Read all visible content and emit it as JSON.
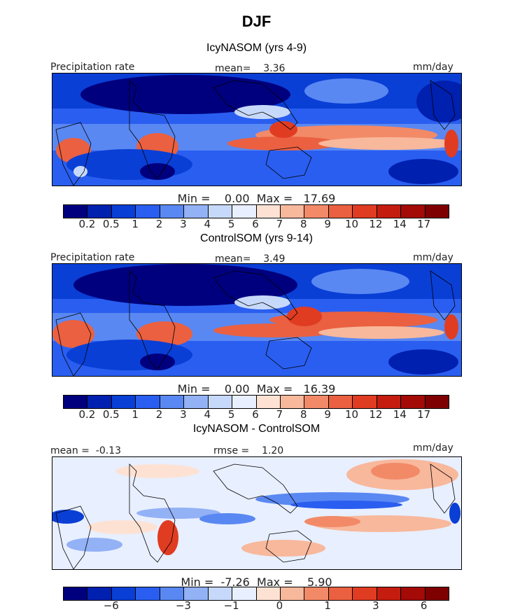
{
  "figure_title": "DJF",
  "panels": [
    {
      "title": "IcyNASOM (yrs 4-9)",
      "left_label": "Precipitation rate",
      "center_label": "mean=    3.36",
      "right_label": "mm/day",
      "stats": "Min =    0.00  Max =   17.69"
    },
    {
      "title": "ControlSOM (yrs 9-14)",
      "left_label": "Precipitation rate",
      "center_label": "mean=    3.49",
      "right_label": "mm/day",
      "stats": "Min =    0.00  Max =   16.39"
    },
    {
      "title": "IcyNASOM - ControlSOM",
      "left_label": "mean =  -0.13",
      "center_label": "rmse =    1.20",
      "right_label": "mm/day",
      "stats": "Min =  -7.26  Max =    5.90"
    }
  ],
  "colorbar": {
    "colors": [
      "#00007f",
      "#0020b0",
      "#0a3fd6",
      "#2a5ef0",
      "#5a88f2",
      "#93b1f5",
      "#c7d9fa",
      "#e8efff",
      "#fde2d4",
      "#f8b89c",
      "#f28a68",
      "#ea6040",
      "#e03c22",
      "#c41d10",
      "#a40a06",
      "#7f0000"
    ],
    "precip_ticks": [
      "0.2",
      "0.5",
      "1",
      "2",
      "3",
      "4",
      "5",
      "6",
      "7",
      "8",
      "9",
      "10",
      "12",
      "14",
      "17"
    ],
    "diff_ticks": [
      {
        "label": "−6",
        "pos": 2
      },
      {
        "label": "−3",
        "pos": 5
      },
      {
        "label": "−1",
        "pos": 7
      },
      {
        "label": "0",
        "pos": 9
      },
      {
        "label": "1",
        "pos": 11
      },
      {
        "label": "3",
        "pos": 13
      },
      {
        "label": "6",
        "pos": 15
      }
    ]
  }
}
